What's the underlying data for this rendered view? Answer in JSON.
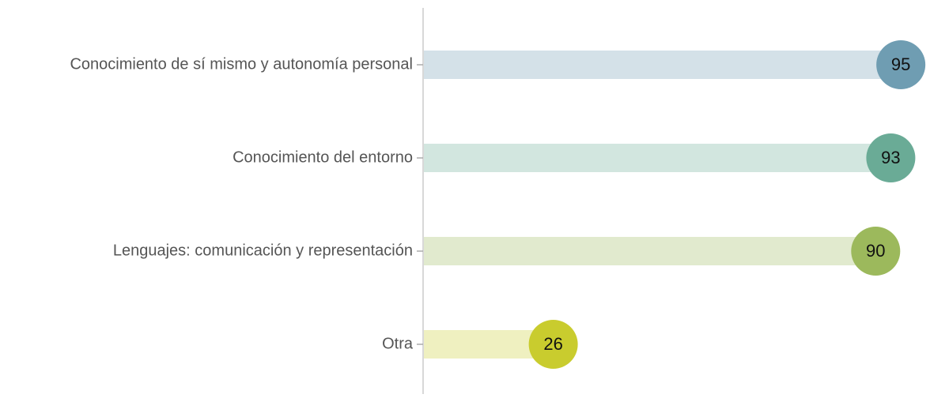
{
  "chart_data": {
    "type": "lollipop-bar",
    "categories": [
      "Conocimiento de sí mismo y autonomía personal",
      "Conocimiento del entorno",
      "Lenguajes: comunicación y representación",
      "Otra"
    ],
    "values": [
      95,
      93,
      90,
      26
    ],
    "colors": [
      "#6f9db2",
      "#6aab96",
      "#9cb95c",
      "#c9cc2e"
    ],
    "xlim": [
      0,
      100
    ]
  }
}
